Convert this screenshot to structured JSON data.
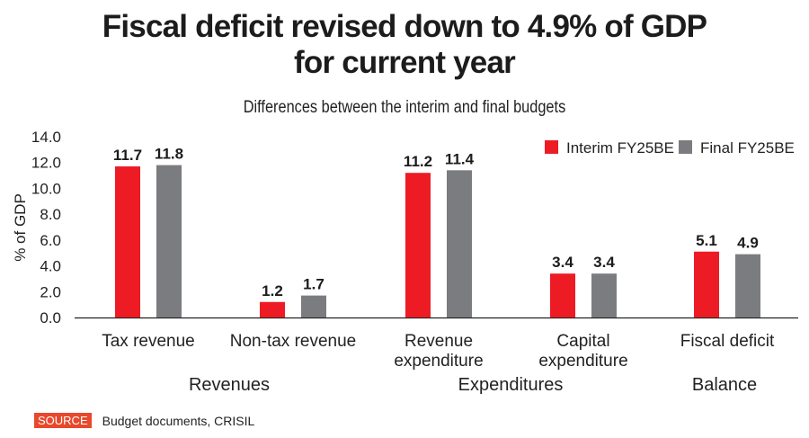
{
  "chart_data": {
    "type": "bar",
    "title": "Fiscal deficit revised down to 4.9% of GDP for current year",
    "title_lines": [
      "Fiscal deficit revised down to 4.9% of GDP",
      "for current year"
    ],
    "subtitle": "Differences between the interim and final budgets",
    "xlabel": "",
    "ylabel": "% of GDP",
    "ylim": [
      0,
      14
    ],
    "yticks": [
      0,
      2,
      4,
      6,
      8,
      10,
      12,
      14
    ],
    "ytick_labels": [
      "0.0",
      "2.0",
      "4.0",
      "6.0",
      "8.0",
      "10.0",
      "12.0",
      "14.0"
    ],
    "grid": false,
    "legend_position": "top-right",
    "categories": [
      "Tax revenue",
      "Non-tax revenue",
      "Revenue expenditure",
      "Capital expenditure",
      "Fiscal deficit"
    ],
    "category_lines": [
      [
        "Tax revenue"
      ],
      [
        "Non-tax revenue"
      ],
      [
        "Revenue",
        "expenditure"
      ],
      [
        "Capital",
        "expenditure"
      ],
      [
        "Fiscal deficit"
      ]
    ],
    "groups": [
      {
        "label": "Revenues",
        "categories": [
          "Tax revenue",
          "Non-tax revenue"
        ]
      },
      {
        "label": "Expenditures",
        "categories": [
          "Revenue expenditure",
          "Capital expenditure"
        ]
      },
      {
        "label": "Balance",
        "categories": [
          "Fiscal deficit"
        ]
      }
    ],
    "series": [
      {
        "name": "Interim FY25BE",
        "color": "#ed1c24",
        "values": [
          11.7,
          1.2,
          11.2,
          3.4,
          5.1
        ],
        "labels": [
          "11.7",
          "1.2",
          "11.2",
          "3.4",
          "5.1"
        ]
      },
      {
        "name": "Final FY25BE",
        "color": "#7b7c7f",
        "values": [
          11.8,
          1.7,
          11.4,
          3.4,
          4.9
        ],
        "labels": [
          "11.8",
          "1.7",
          "11.4",
          "3.4",
          "4.9"
        ]
      }
    ]
  },
  "source": {
    "badge": "SOURCE",
    "text": "Budget documents, CRISIL"
  }
}
